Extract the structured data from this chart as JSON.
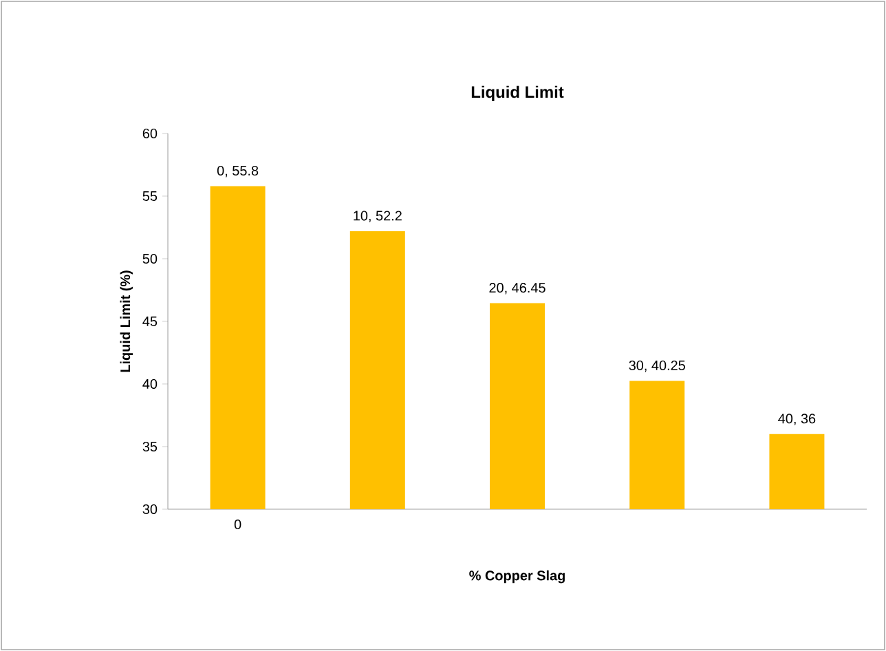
{
  "chart_data": {
    "type": "bar",
    "title": "Liquid Limit",
    "xlabel": "% Copper Slag",
    "ylabel": "Liquid Limit (%)",
    "categories": [
      "0",
      null,
      null,
      null,
      null
    ],
    "values": [
      55.8,
      52.2,
      46.45,
      40.25,
      36
    ],
    "value_labels": [
      "0, 55.8",
      "10, 52.2",
      "20, 46.45",
      "30, 40.25",
      "40, 36"
    ],
    "color": "#ffc000",
    "ylim": [
      30,
      60
    ],
    "yticks": [
      30,
      35,
      40,
      45,
      50,
      55,
      60
    ],
    "grid": false
  }
}
